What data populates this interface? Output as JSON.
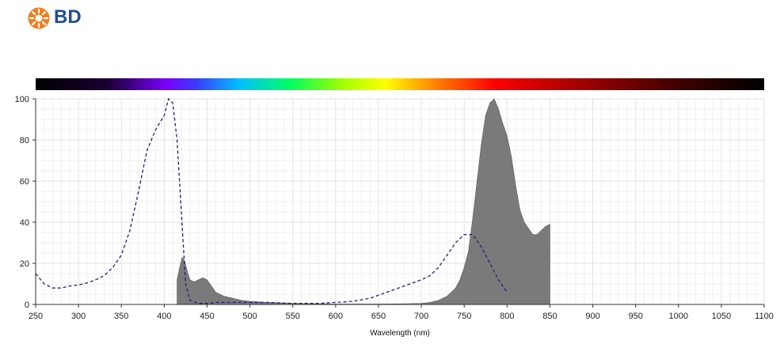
{
  "header": {
    "brand": "BD"
  },
  "colors": {
    "brand_orange": "#f07d1e",
    "brand_blue": "#1f4f8f",
    "emission_fill": "#7a7a7a",
    "emission_dark": "#3a3a3a",
    "excitation_line": "#2a1a7a"
  },
  "chart_data": {
    "type": "area",
    "xlabel": "Wavelength (nm)",
    "ylabel": "",
    "xlim": [
      250,
      1100
    ],
    "ylim": [
      0,
      100
    ],
    "x_ticks": [
      250,
      300,
      350,
      400,
      450,
      500,
      550,
      600,
      650,
      700,
      750,
      800,
      850,
      900,
      950,
      1000,
      1050,
      1100
    ],
    "y_ticks": [
      0,
      20,
      40,
      60,
      80,
      100
    ],
    "grid": true,
    "spectrum_bar": true,
    "series": [
      {
        "style": "dashed-line",
        "x": [
          250,
          260,
          270,
          280,
          290,
          300,
          310,
          320,
          330,
          340,
          350,
          360,
          370,
          380,
          390,
          400,
          405,
          410,
          415,
          420,
          425,
          430,
          440,
          450,
          460,
          480,
          500,
          520,
          550,
          580,
          600,
          620,
          640,
          660,
          680,
          700,
          710,
          720,
          730,
          740,
          750,
          760,
          770,
          780,
          790,
          800
        ],
        "values": [
          15,
          10,
          8,
          8,
          9,
          9.5,
          10.5,
          12,
          14,
          18,
          24,
          36,
          55,
          75,
          85,
          92,
          100,
          98,
          80,
          45,
          10,
          2,
          0.5,
          0.5,
          1,
          1,
          1,
          1,
          0.5,
          0.5,
          1,
          1.5,
          3,
          6,
          9,
          12,
          14,
          18,
          24,
          30,
          34,
          34,
          28,
          20,
          12,
          6
        ]
      },
      {
        "style": "filled-area",
        "x": [
          415,
          418,
          421,
          424,
          427,
          430,
          435,
          440,
          445,
          450,
          455,
          460,
          470,
          480,
          490,
          500,
          520,
          550,
          600,
          650,
          680,
          700,
          710,
          720,
          730,
          740,
          745,
          750,
          755,
          760,
          765,
          770,
          775,
          780,
          785,
          790,
          795,
          800,
          805,
          810,
          815,
          820,
          825,
          830,
          835,
          840,
          845,
          850
        ],
        "values": [
          12,
          18,
          23,
          21,
          16,
          12,
          11,
          12,
          13,
          12,
          9,
          6,
          4,
          3,
          2,
          1.5,
          1,
          0.5,
          0.2,
          0.2,
          0.3,
          0.5,
          1,
          2,
          4,
          8,
          12,
          18,
          26,
          42,
          60,
          78,
          92,
          98,
          100,
          95,
          88,
          82,
          72,
          58,
          46,
          40,
          37,
          34,
          34,
          36,
          38,
          39
        ]
      }
    ]
  }
}
